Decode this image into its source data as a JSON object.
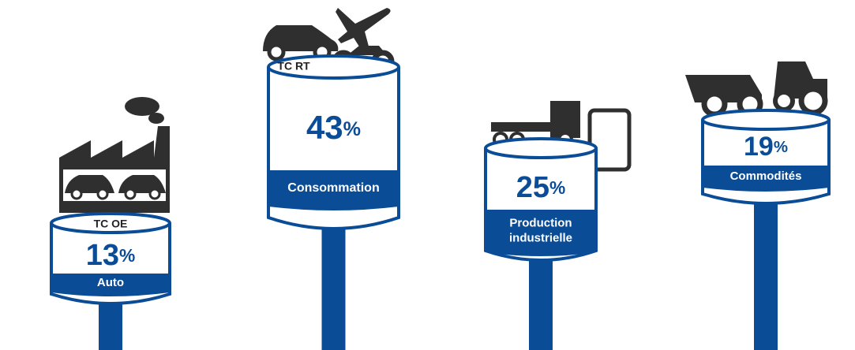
{
  "items": [
    {
      "tag": "TC OE",
      "value": 13,
      "unit": "%",
      "label": [
        "Auto"
      ]
    },
    {
      "tag": "TC RT",
      "value": 43,
      "unit": "%",
      "label": [
        "Consommation"
      ]
    },
    {
      "value": 25,
      "unit": "%",
      "label": [
        "Production",
        "industrielle"
      ]
    },
    {
      "value": 19,
      "unit": "%",
      "label": [
        "Commodités"
      ]
    }
  ]
}
